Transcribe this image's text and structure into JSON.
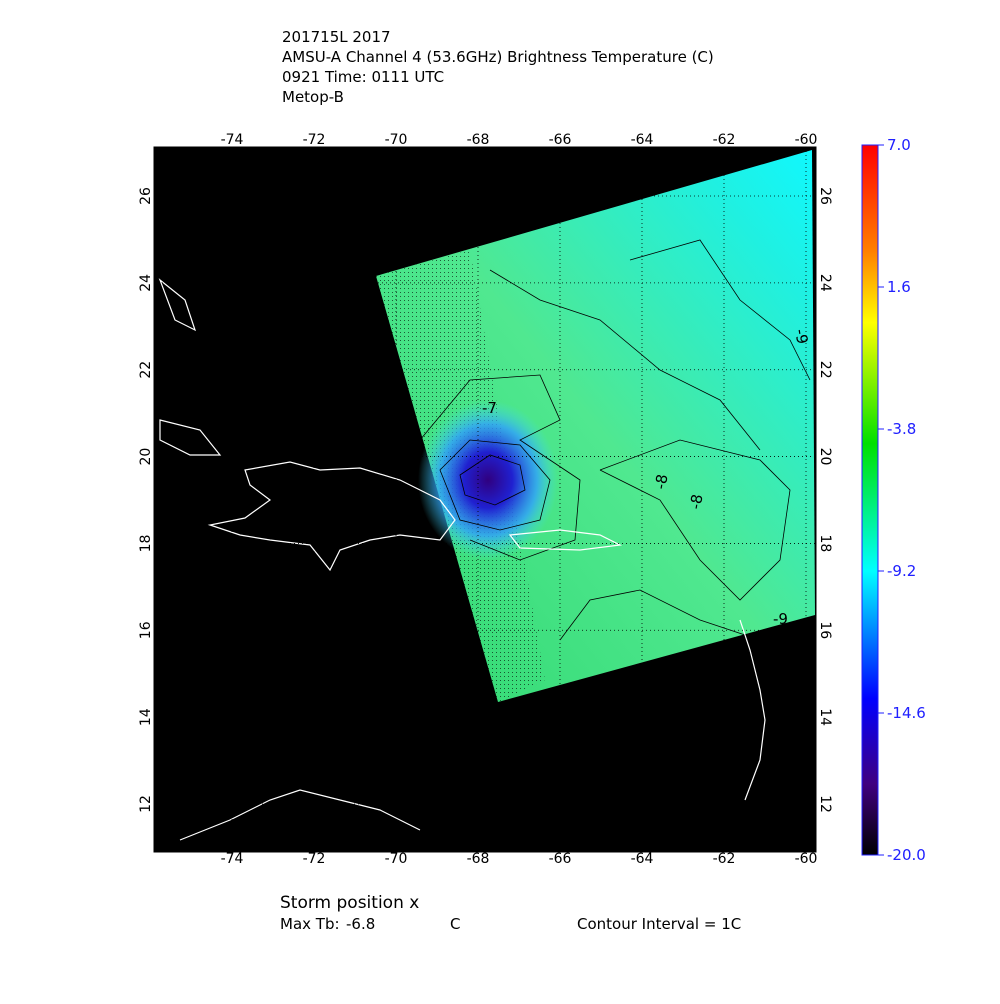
{
  "header": {
    "lines": [
      "201715L 2017",
      "AMSU-A Channel 4 (53.6GHz) Brightness Temperature (C)",
      "0921 Time: 0111 UTC",
      "Metop-B"
    ]
  },
  "map": {
    "lon_ticks": [
      -74,
      -72,
      -70,
      -68,
      -66,
      -64,
      -62,
      -60
    ],
    "lat_ticks": [
      12,
      14,
      16,
      18,
      20,
      22,
      24,
      26
    ],
    "contour_labels": [
      "-7",
      "-8",
      "-8",
      "-9",
      "-9"
    ]
  },
  "colorbar": {
    "ticks": [
      {
        "value": 7,
        "label": "7.0"
      },
      1.6,
      -3.8,
      -9.2,
      -14.6,
      {
        "value": -20,
        "label": "-20.0"
      }
    ]
  },
  "footer": {
    "storm_position": "Storm position x",
    "max_tb_label": "Max Tb:",
    "max_tb_value": -6.8,
    "max_tb_unit": "C",
    "contour_interval": "Contour Interval = 1C"
  }
}
